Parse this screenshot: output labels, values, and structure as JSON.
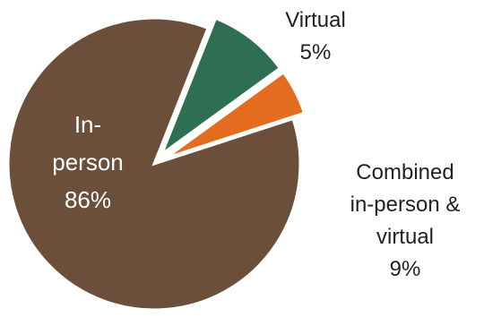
{
  "chart_data": {
    "type": "pie",
    "slices": [
      {
        "label_lines": [
          "Virtual",
          "5%"
        ],
        "value": 5,
        "color": "#e36c1e"
      },
      {
        "label_lines": [
          "Combined",
          "in-person &",
          "virtual",
          "9%"
        ],
        "value": 9,
        "color": "#2e6e52"
      },
      {
        "label_lines": [
          "In-",
          "person",
          "86%"
        ],
        "value": 86,
        "color": "#6b4f3a"
      }
    ],
    "label_color": "#222222",
    "inner_label_color": "#ffffff",
    "start_angle_deg": -18
  }
}
